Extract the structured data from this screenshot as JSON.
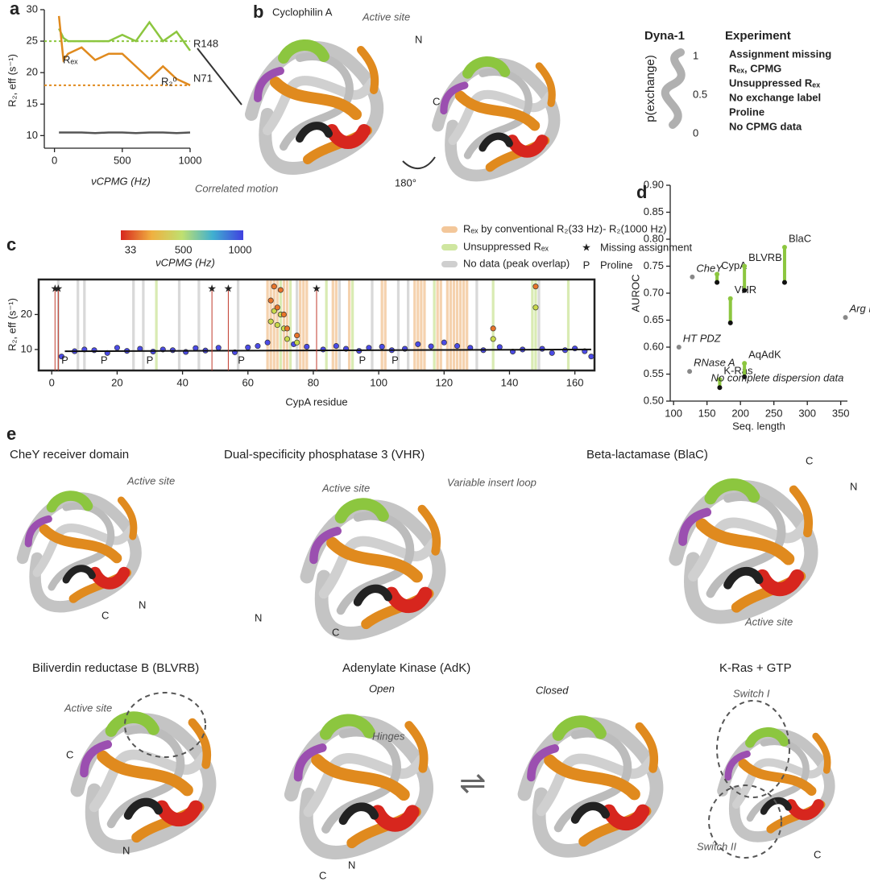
{
  "panels": {
    "a": "a",
    "b": "b",
    "c": "c",
    "d": "d",
    "e": "e"
  },
  "chart_data": [
    {
      "type": "line",
      "xlabel": "νCPMG (Hz)",
      "ylabel": "R₂, eff (s⁻¹)",
      "x": [
        33,
        66,
        100,
        200,
        300,
        400,
        500,
        600,
        700,
        800,
        900,
        1000
      ],
      "series": [
        {
          "name": "R148",
          "color": "#8cc63f",
          "values": [
            27,
            25.5,
            25,
            25,
            25,
            25,
            26,
            25,
            28,
            25,
            26.5,
            23.5
          ]
        },
        {
          "name": "N71",
          "color": "#e08a1e",
          "values": [
            29,
            22,
            23,
            24,
            22,
            23,
            23,
            21,
            19,
            21,
            19,
            18
          ]
        },
        {
          "color": "#555555",
          "values": [
            10.5,
            10.5,
            10.5,
            10.5,
            10.4,
            10.5,
            10.5,
            10.4,
            10.5,
            10.5,
            10.4,
            10.5
          ]
        }
      ],
      "hlines": [
        {
          "value": 25,
          "color": "#8cc63f"
        },
        {
          "value": 18,
          "color": "#e08a1e"
        }
      ],
      "annotations": [
        "Rₑₓ",
        "R₂⁰"
      ],
      "xlim": [
        -75,
        1000
      ],
      "ylim": [
        8,
        30
      ],
      "xticks": [
        0,
        500,
        1000
      ],
      "yticks": [
        10,
        15,
        20,
        25,
        30
      ]
    },
    {
      "type": "scatter",
      "xlabel": "CypA residue",
      "ylabel": "R₂, eff (s⁻¹)",
      "xlim": [
        -4,
        166
      ],
      "ylim": [
        4,
        30
      ],
      "xticks": [
        0,
        20,
        40,
        60,
        80,
        100,
        120,
        140,
        160
      ],
      "yticks": [
        10,
        20
      ],
      "series": [
        {
          "color": "#4b4be6",
          "x": [
            3,
            7,
            10,
            13,
            17,
            20,
            23,
            27,
            31,
            34,
            37,
            41,
            44,
            47,
            51,
            56,
            60,
            63,
            66,
            74,
            78,
            83,
            87,
            90,
            94,
            97,
            101,
            104,
            108,
            112,
            116,
            120,
            124,
            128,
            132,
            137,
            141,
            144,
            150,
            153,
            157,
            160,
            163,
            165
          ],
          "values": [
            8,
            9.5,
            10,
            9.8,
            9,
            10.5,
            9.6,
            10.2,
            9.4,
            10,
            9.8,
            9.3,
            10.4,
            9.7,
            10.5,
            9.2,
            10.6,
            11,
            12,
            11.5,
            10.8,
            10,
            11,
            10.2,
            9.6,
            10.5,
            10.8,
            9.8,
            10.2,
            11.5,
            10.9,
            12,
            11,
            10.5,
            9.8,
            10.7,
            9.4,
            10,
            10.2,
            9,
            9.8,
            10.3,
            9.5,
            8
          ]
        },
        {
          "color": "#c8d84a",
          "x": [
            67,
            68,
            69,
            70,
            71,
            72,
            75,
            135,
            148
          ],
          "values": [
            18,
            21,
            17,
            20,
            16,
            13,
            12,
            13,
            22
          ]
        },
        {
          "color": "#e8742a",
          "x": [
            67,
            68,
            69,
            70,
            71,
            72,
            75,
            135,
            148
          ],
          "values": [
            24,
            28,
            22,
            27,
            20,
            16,
            14,
            16,
            28
          ]
        }
      ],
      "fit_x": [
        4,
        165
      ],
      "fit_values": [
        9.5,
        10
      ],
      "missing_assignment": [
        1,
        2,
        49,
        54,
        81
      ],
      "prolines": [
        4,
        16,
        30,
        58,
        95,
        105
      ],
      "rex_bands": [
        66,
        67,
        68,
        69,
        71,
        72,
        76,
        77,
        78,
        86,
        87,
        91,
        101,
        102,
        111,
        112,
        113,
        114,
        118,
        119,
        121,
        122,
        123,
        124,
        125,
        126,
        127
      ],
      "unsuppressed_bands": [
        32,
        70,
        73,
        84,
        92,
        117,
        135,
        147,
        148,
        158
      ],
      "overlap_bands": [
        2,
        8,
        10,
        25,
        28,
        39,
        45,
        57,
        75,
        88,
        98,
        106,
        109,
        130,
        149
      ],
      "colorbar_label": "νCPMG (Hz)",
      "colorbar_ticks": [
        33,
        500,
        1000
      ],
      "legend": [
        "Rₑₓ by conventional R₂(33 Hz)- R₂(1000 Hz)",
        "Unsuppressed Rₑₓ",
        "No data (peak overlap)",
        "Missing assignment",
        "Proline"
      ],
      "star_marker": "★",
      "proline_marker": "P"
    },
    {
      "type": "scatter",
      "xlabel": "Seq. length",
      "ylabel": "AUROC",
      "xlim": [
        95,
        360
      ],
      "ylim": [
        0.5,
        0.9
      ],
      "xticks": [
        100,
        150,
        200,
        250,
        300,
        350
      ],
      "yticks": [
        {
          "value": 0.5,
          "label": "0.50"
        },
        0.55,
        {
          "value": 0.6,
          "label": "0.60"
        },
        0.65,
        {
          "value": 0.7,
          "label": "0.70"
        },
        0.75,
        {
          "value": 0.8,
          "label": "0.80"
        },
        0.85,
        {
          "value": 0.9,
          "label": "0.90"
        }
      ],
      "labels": [
        "CheY",
        "HT PDZ",
        "RNase A",
        "Arg Kin",
        "CypA",
        "VHR",
        "BLVRB",
        "BlaC",
        "K-Ras",
        "AqAdK"
      ],
      "x": [
        128,
        108,
        124,
        357,
        165,
        185,
        206,
        266,
        169,
        206
      ],
      "values": [
        0.73,
        0.6,
        0.555,
        0.655,
        0.735,
        0.69,
        0.75,
        0.785,
        0.54,
        0.57
      ],
      "values_end": [
        null,
        null,
        null,
        null,
        0.72,
        0.645,
        0.705,
        0.72,
        0.525,
        0.545
      ],
      "colors": [
        "#888888",
        "#888888",
        "#888888",
        "#888888",
        "#8cc63f",
        "#8cc63f",
        "#8cc63f",
        "#8cc63f",
        "#8cc63f",
        "#8cc63f"
      ],
      "annotation": "No complete dispersion data"
    }
  ],
  "panel_b": {
    "title": "Cyclophilin A",
    "active_site": "Active site",
    "correlated": "Correlated motion",
    "rotation": "180°",
    "n": "N",
    "c": "C",
    "legend_title": "Dyna-1",
    "experiment": "Experiment",
    "p_label": "p(exchange)",
    "p_ticks": [
      "1",
      "0.5",
      "0"
    ],
    "items": [
      {
        "label": "Assignment missing",
        "color": "#d7261e"
      },
      {
        "label": "Rₑₓ, CPMG",
        "color": "#e08a1e"
      },
      {
        "label": "Unsuppressed Rₑₓ",
        "color": "#8cc63f"
      },
      {
        "label": "No exchange label",
        "color": "#b8b8b8"
      },
      {
        "label": "Proline",
        "color": "#9b4fb0"
      },
      {
        "label": "No CPMG data",
        "color": "#222222"
      }
    ]
  },
  "panel_e": {
    "chey": {
      "title": "CheY receiver domain",
      "site": "Active site",
      "n": "N",
      "c": "C"
    },
    "vhr": {
      "title": "Dual-specificity phosphatase 3 (VHR)",
      "site": "Active site",
      "loop": "Variable insert loop",
      "n": "N",
      "c": "C"
    },
    "blac": {
      "title": "Beta-lactamase (BlaC)",
      "site": "Active site",
      "n": "N",
      "c": "C"
    },
    "blvrb": {
      "title": "Biliverdin reductase B (BLVRB)",
      "site": "Active site",
      "n": "N",
      "c": "C"
    },
    "adk": {
      "title": "Adenylate Kinase (AdK)",
      "open": "Open",
      "closed": "Closed",
      "hinges": "Hinges",
      "n": "N",
      "c": "C",
      "eq": "⇌"
    },
    "kras": {
      "title": "K-Ras + GTP",
      "s1": "Switch I",
      "s2": "Switch II",
      "c": "C"
    }
  }
}
